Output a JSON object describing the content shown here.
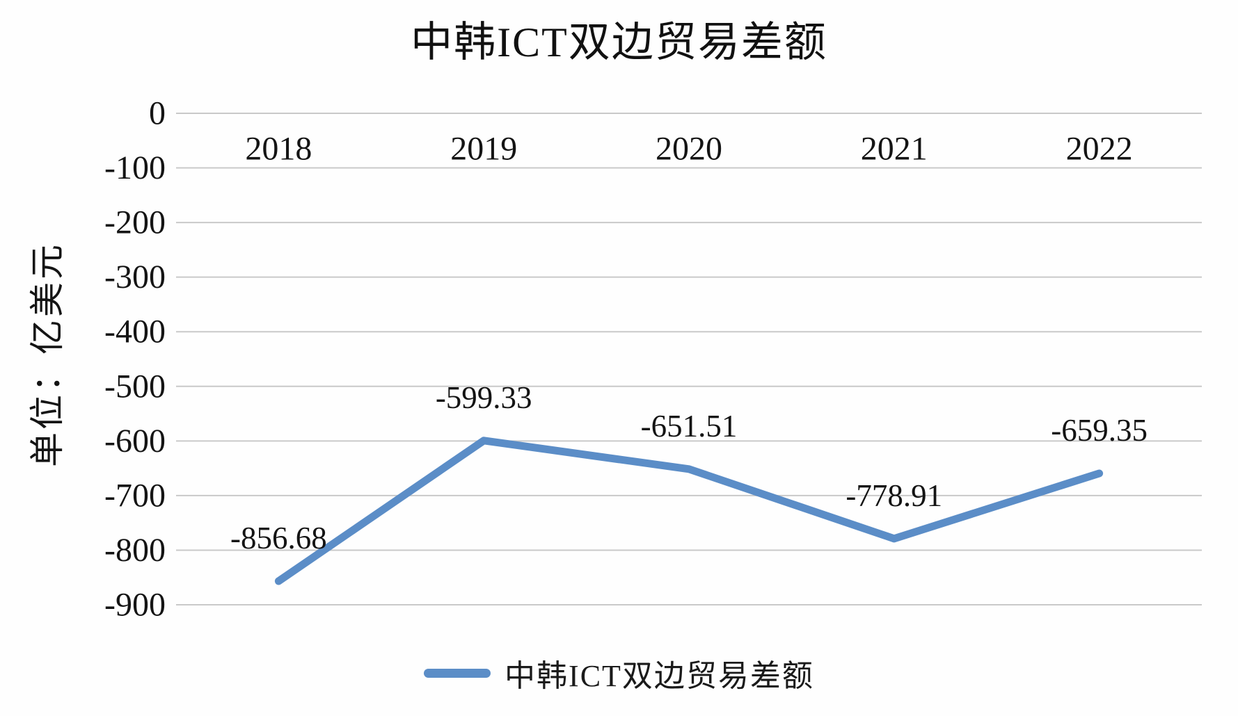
{
  "chart_data": {
    "type": "line",
    "title": "中韩ICT双边贸易差额",
    "ylabel": "单位：亿美元",
    "xlabel": "",
    "categories": [
      "2018",
      "2019",
      "2020",
      "2021",
      "2022"
    ],
    "series": [
      {
        "name": "中韩ICT双边贸易差额",
        "values": [
          -856.68,
          -599.33,
          -651.51,
          -778.91,
          -659.35
        ]
      }
    ],
    "data_labels": [
      "-856.68",
      "-599.33",
      "-651.51",
      "-778.91",
      "-659.35"
    ],
    "y_ticks": [
      0,
      -100,
      -200,
      -300,
      -400,
      -500,
      -600,
      -700,
      -800,
      -900
    ],
    "y_tick_labels": [
      "0",
      "-100",
      "-200",
      "-300",
      "-400",
      "-500",
      "-600",
      "-700",
      "-800",
      "-900"
    ],
    "ylim": [
      -900,
      0
    ],
    "grid": "horizontal",
    "legend_position": "bottom",
    "legend_entries": [
      "中韩ICT双边贸易差额"
    ],
    "line_color": "#5b8dc7",
    "grid_color": "#c9c9c9",
    "text_color": "#141414"
  }
}
